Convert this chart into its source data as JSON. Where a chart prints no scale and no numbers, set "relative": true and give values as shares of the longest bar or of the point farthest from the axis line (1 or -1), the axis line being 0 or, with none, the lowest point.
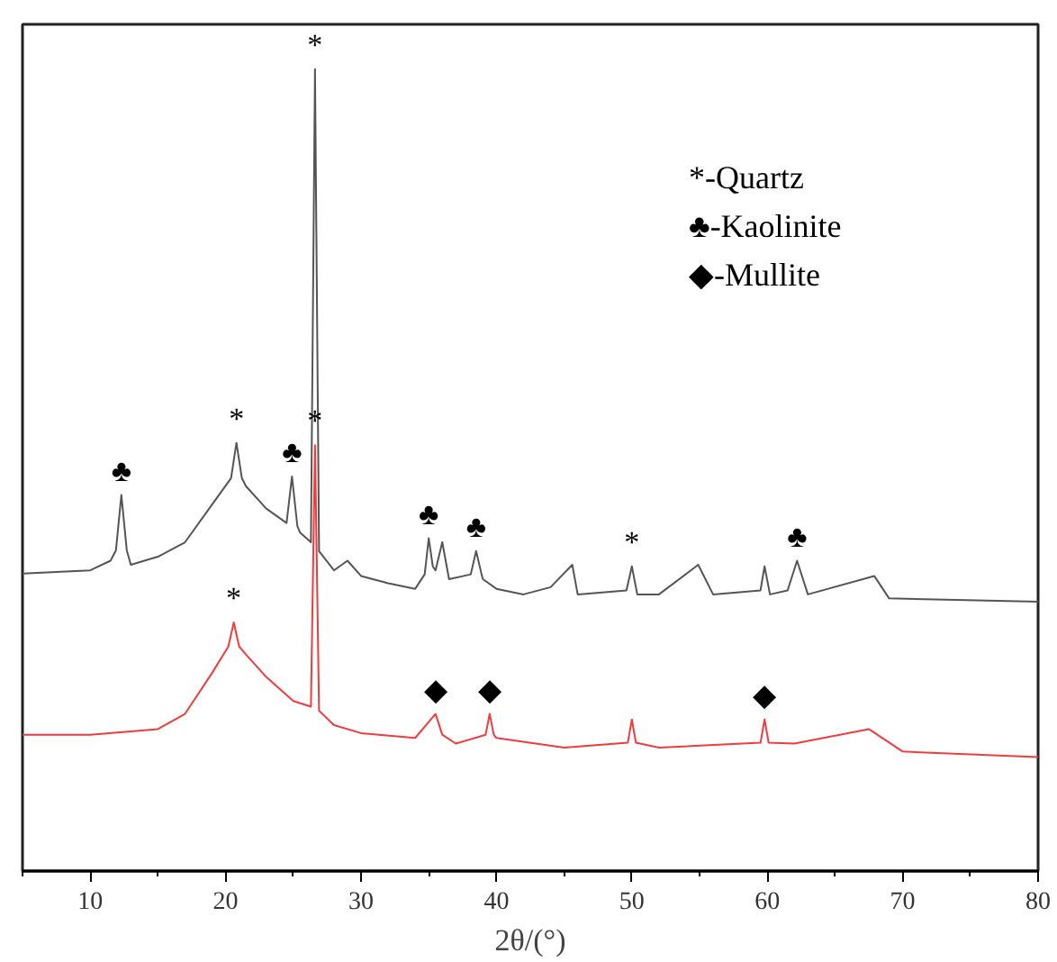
{
  "chart_data": {
    "type": "line",
    "relative": true,
    "xlabel": "2θ/(°)",
    "xlim": [
      5,
      80
    ],
    "xticks": [
      10,
      20,
      30,
      40,
      50,
      60,
      70,
      80
    ],
    "series": [
      {
        "color": "#555555",
        "x": [
          5,
          10,
          11.5,
          11.9,
          12.3,
          12.7,
          13,
          15,
          17,
          19,
          20.4,
          20.8,
          21.2,
          21.5,
          23,
          24.5,
          24.9,
          25.3,
          25.5,
          26.3,
          26.6,
          26.9,
          28,
          29,
          30,
          32,
          34,
          34.7,
          35,
          35.3,
          35.5,
          36,
          36.5,
          38.1,
          38.5,
          38.9,
          39,
          40,
          42,
          44,
          45.6,
          46,
          49.6,
          50,
          50.4,
          52,
          54.9,
          56,
          59.5,
          59.8,
          60.2,
          61.5,
          62.2,
          63,
          67.9,
          69,
          80
        ],
        "values": [
          0.371,
          0.375,
          0.387,
          0.4,
          0.469,
          0.4,
          0.382,
          0.392,
          0.41,
          0.457,
          0.49,
          0.534,
          0.49,
          0.48,
          0.452,
          0.434,
          0.492,
          0.43,
          0.422,
          0.41,
          1,
          0.399,
          0.375,
          0.387,
          0.368,
          0.359,
          0.352,
          0.37,
          0.415,
          0.38,
          0.375,
          0.41,
          0.364,
          0.37,
          0.399,
          0.37,
          0.364,
          0.352,
          0.345,
          0.354,
          0.382,
          0.345,
          0.35,
          0.38,
          0.345,
          0.345,
          0.382,
          0.345,
          0.35,
          0.38,
          0.345,
          0.35,
          0.387,
          0.345,
          0.368,
          0.34,
          0.336
        ]
      },
      {
        "color": "#f03c3c",
        "x": [
          5,
          10,
          15,
          17,
          19,
          20.2,
          20.6,
          21,
          21.5,
          23,
          25,
          26.3,
          26.6,
          26.9,
          28,
          30,
          34,
          35.5,
          36,
          37,
          39.2,
          39.5,
          39.8,
          40,
          45,
          49.7,
          50,
          50.3,
          52,
          59.5,
          59.8,
          60.1,
          62,
          67.5,
          70,
          80
        ],
        "values": [
          0.17,
          0.17,
          0.177,
          0.196,
          0.247,
          0.28,
          0.31,
          0.28,
          0.27,
          0.242,
          0.212,
          0.205,
          0.531,
          0.2,
          0.182,
          0.172,
          0.166,
          0.196,
          0.17,
          0.159,
          0.17,
          0.196,
          0.17,
          0.166,
          0.154,
          0.16,
          0.189,
          0.16,
          0.154,
          0.16,
          0.189,
          0.16,
          0.159,
          0.177,
          0.149,
          0.142
        ]
      }
    ],
    "annotations": [
      {
        "text": "*",
        "x": 26.6,
        "y": 1
      },
      {
        "text": "*",
        "x": 20.8,
        "y": 0.534
      },
      {
        "text": "♣",
        "x": 12.3,
        "y": 0.469
      },
      {
        "text": "♣",
        "x": 24.9,
        "y": 0.492
      },
      {
        "text": "*",
        "x": 26.6,
        "y": 0.531
      },
      {
        "text": "♣",
        "x": 35,
        "y": 0.415
      },
      {
        "text": "♣",
        "x": 38.5,
        "y": 0.399
      },
      {
        "text": "*",
        "x": 50,
        "y": 0.38
      },
      {
        "text": "♣",
        "x": 62.2,
        "y": 0.387
      },
      {
        "text": "*",
        "x": 20.6,
        "y": 0.31
      },
      {
        "text": "◆",
        "x": 35.5,
        "y": 0.196
      },
      {
        "text": "◆",
        "x": 39.5,
        "y": 0.196
      },
      {
        "text": "◆",
        "x": 59.8,
        "y": 0.189
      },
      "*-Quartz",
      "♣-Kaolinite",
      "◆-Mullite"
    ]
  }
}
